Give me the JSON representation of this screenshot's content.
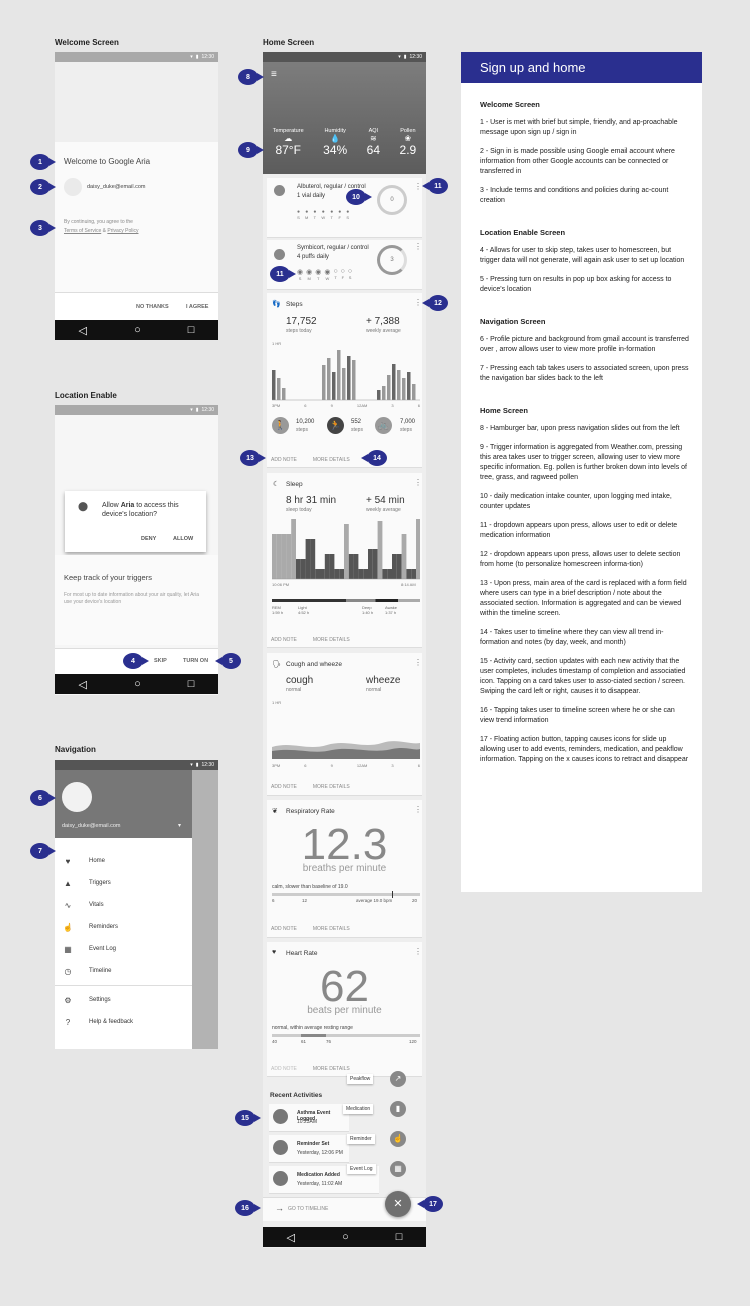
{
  "sections": {
    "welcome": "Welcome Screen",
    "location": "Location Enable",
    "navigation": "Navigation",
    "home": "Home Screen"
  },
  "status_time": "12:30",
  "welcome": {
    "title": "Welcome to Google Aria",
    "email": "daisy_duke@email.com",
    "terms_prefix": "By continuing, you agree to the",
    "terms_link": "Terms of Service",
    "amp": "&",
    "privacy_link": "Privacy Policy",
    "no_thanks": "NO THANKS",
    "agree": "I AGREE"
  },
  "location": {
    "dialog_pre": "Allow ",
    "dialog_app": "Aria",
    "dialog_post": " to access this device's location?",
    "deny": "DENY",
    "allow": "ALLOW",
    "heading": "Keep track of your triggers",
    "body": "For most up to date information about your air quality, let Aria use your device's location",
    "skip": "SKIP",
    "turn_on": "TURN ON"
  },
  "nav": {
    "email": "daisy_duke@email.com",
    "items": [
      "Home",
      "Triggers",
      "Vitals",
      "Reminders",
      "Event Log",
      "Timeline"
    ],
    "settings": "Settings",
    "help": "Help & feedback"
  },
  "home": {
    "weather": [
      {
        "label": "Temperature",
        "value": "87°F"
      },
      {
        "label": "Humidity",
        "value": "34%"
      },
      {
        "label": "AQI",
        "value": "64"
      },
      {
        "label": "Pollen",
        "value": "2.9"
      }
    ],
    "med1": {
      "name": "Albuterol, regular / control",
      "dose": "1 vial daily",
      "count": "0",
      "days": [
        "S",
        "M",
        "T",
        "W",
        "T",
        "F",
        "S"
      ]
    },
    "med2": {
      "name": "Symbicort, regular / control",
      "dose": "4 puffs daily",
      "count": "3"
    },
    "steps": {
      "title": "Steps",
      "today": "17,752",
      "today_label": "steps today",
      "avg": "+ 7,388",
      "avg_label": "weekly average",
      "hr": "1 HR",
      "ticks": [
        "3PM",
        "6",
        "9",
        "12AM",
        "3",
        "6"
      ],
      "walk": "10,200",
      "run": "552",
      "bike": "7,000",
      "unit": "steps"
    },
    "sleep": {
      "title": "Sleep",
      "today": "8 hr 31 min",
      "today_label": "sleep today",
      "avg": "+ 54 min",
      "avg_label": "weekly average",
      "start": "10:06 PM",
      "end": "8:14 AM",
      "stages": [
        {
          "l": "REM",
          "v": "1:59 h"
        },
        {
          "l": "Light",
          "v": "4:52 h"
        },
        {
          "l": "Deep",
          "v": "1:40 h"
        },
        {
          "l": "Awake",
          "v": "1:37 h"
        }
      ]
    },
    "cough": {
      "title": "Cough and wheeze",
      "cough": "cough",
      "wheeze": "wheeze",
      "status": "normal",
      "hr": "1 HR",
      "ticks": [
        "3PM",
        "6",
        "9",
        "12AM",
        "3",
        "6"
      ]
    },
    "resp": {
      "title": "Respiratory Rate",
      "value": "12.3",
      "unit": "breaths per minute",
      "note": "calm, slower than baseline of 19.0",
      "ticks": [
        "6",
        "12",
        "20"
      ],
      "avg": "average 19.0 bpm"
    },
    "heart": {
      "title": "Heart Rate",
      "value": "62",
      "unit": "beats per minute",
      "note": "normal, within average resting range",
      "ticks": [
        "40",
        "61",
        "76",
        "120"
      ]
    },
    "add_note": "ADD NOTE",
    "more_details": "MORE DETAILS",
    "recent_title": "Recent Activities",
    "activities": [
      {
        "title": "Asthma Event Logged",
        "time": "10:23AM"
      },
      {
        "title": "Reminder Set",
        "time": "Yesterday, 12:06 PM"
      },
      {
        "title": "Medication Added",
        "time": "Yesterday, 11:02 AM"
      }
    ],
    "fab_items": [
      "Peakflow",
      "Medication",
      "Reminder",
      "Event Log"
    ],
    "go_timeline": "GO TO TIMELINE"
  },
  "desc": {
    "header": "Sign up and home",
    "sections": [
      {
        "title": "Welcome Screen",
        "items": [
          "1 - User is met with brief but simple, friendly, and ap-proachable message upon sign up / sign in",
          "2 - Sign in is made possible using Google email account where information from other Google accounts can be connected or transferred in",
          "3 - Include terms and conditions and policies during ac-count creation"
        ]
      },
      {
        "title": "Location Enable Screen",
        "items": [
          "4 - Allows for user to skip step, takes user to homescreen, but trigger data will not generate, will again ask user to set up location",
          "5 - Pressing turn on results in pop up box asking for access to device's location"
        ]
      },
      {
        "title": "Navigation Screen",
        "items": [
          "6 - Profile picture and background from gmail account is transferred over , arrow allows user to view more profile in-formation",
          "7 - Pressing each tab takes users to associated screen, upon press the navigation bar slides back to the left"
        ]
      },
      {
        "title": "Home Screen",
        "items": [
          "8 - Hamburger bar, upon press navigation slides out from the left",
          "9 - Trigger information is aggregated from Weather.com, pressing this area takes user to trigger screen, allowing user to view more specific information. Eg. pollen is further broken down into levels of tree, grass, and ragweed pollen",
          "10 - daily medication intake counter, upon logging med intake, counter updates",
          "11 - dropdown appears upon press, allows user to edit or delete medication information",
          "12 - dropdown appears upon press, allows user to delete section from home (to personalize homescreen informa-tion)",
          "13 - Upon press, main area of the card is replaced with a form field where users can type in a brief description / note about the associated section. Information is aggregated and can be viewed within the timeline screen.",
          "14 - Takes user to timeline where they can view all trend in-formation and notes (by day, week, and month)",
          "15 - Activity card, section updates with each new activity that the user completes, includes timestamp of completion and associatied icon. Tapping on a card takes user to asso-ciated section / screen. Swiping the card left or right, causes it to disappear.",
          "16 - Tapping takes user to timeline screen where he or she can view trend information",
          "17 - Floating action button, tapping causes icons for slide up allowing user to add events, reminders, medication, and peakflow information. Tapping on the x causes icons to retract and disappear"
        ]
      }
    ]
  },
  "badges": [
    "1",
    "2",
    "3",
    "4",
    "5",
    "6",
    "7",
    "8",
    "9",
    "10",
    "11",
    "11",
    "12",
    "13",
    "14",
    "15",
    "16",
    "17"
  ]
}
